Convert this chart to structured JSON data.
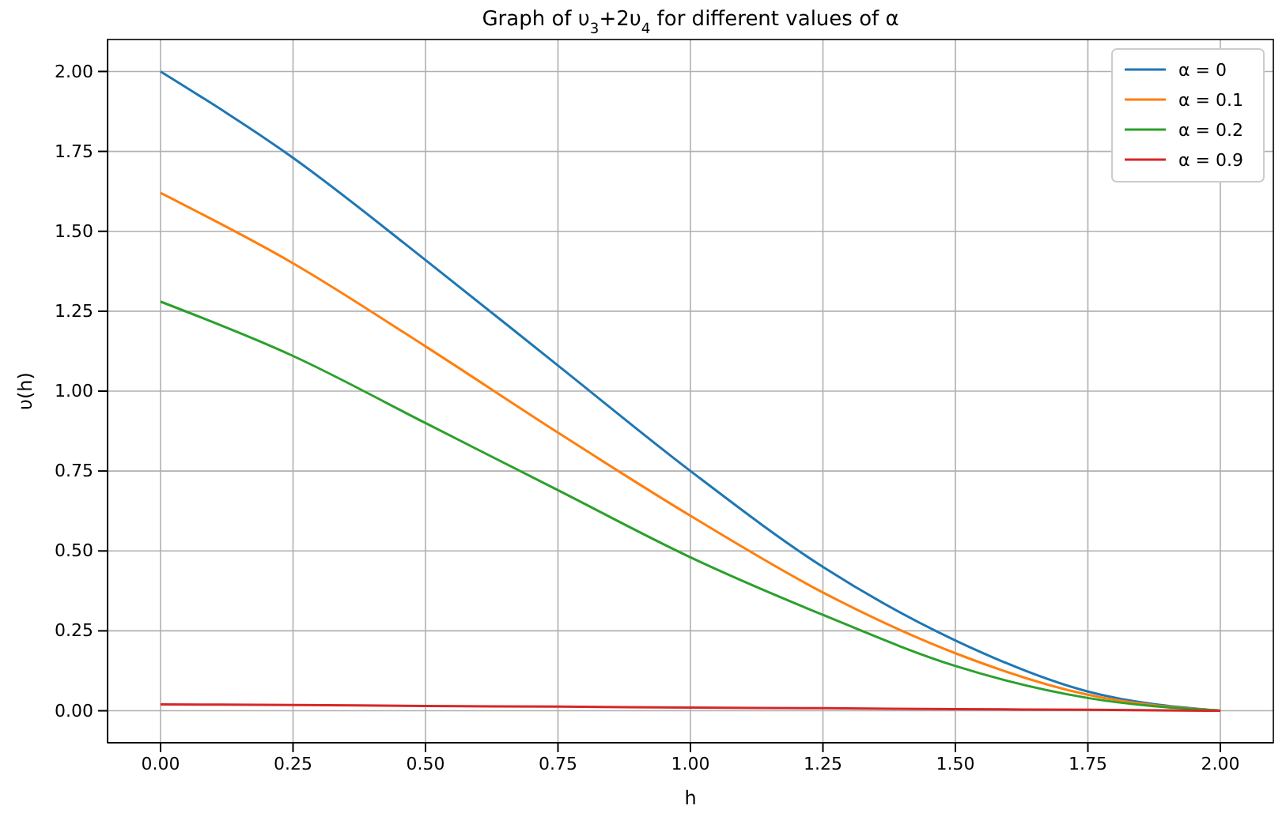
{
  "chart_data": {
    "type": "line",
    "title": "Graph of υ$_{3}$+2υ$_{4}$ for different values of α",
    "xlabel": "h",
    "ylabel": "υ(h)",
    "x": [
      0,
      0.25,
      0.5,
      0.75,
      1.0,
      1.25,
      1.5,
      1.75,
      2.0
    ],
    "series": [
      {
        "name": "α = 0",
        "color": "#1f77b4",
        "values": [
          2.0,
          1.73,
          1.41,
          1.08,
          0.75,
          0.45,
          0.22,
          0.06,
          0
        ]
      },
      {
        "name": "α = 0.1",
        "color": "#ff7f0e",
        "values": [
          1.62,
          1.4,
          1.14,
          0.87,
          0.61,
          0.37,
          0.18,
          0.05,
          0
        ]
      },
      {
        "name": "α = 0.2",
        "color": "#2ca02c",
        "values": [
          1.28,
          1.11,
          0.9,
          0.69,
          0.48,
          0.3,
          0.14,
          0.04,
          0
        ]
      },
      {
        "name": "α = 0.9",
        "color": "#d62728",
        "values": [
          0.02,
          0.018,
          0.015,
          0.013,
          0.01,
          0.008,
          0.005,
          0.003,
          0
        ]
      }
    ],
    "xlim": [
      -0.1,
      2.1
    ],
    "ylim": [
      -0.1,
      2.1
    ],
    "xticks": [
      {
        "value": 0,
        "label": "0.00"
      },
      {
        "value": 0.25,
        "label": "0.25"
      },
      {
        "value": 0.5,
        "label": "0.50"
      },
      {
        "value": 0.75,
        "label": "0.75"
      },
      {
        "value": 1,
        "label": "1.00"
      },
      {
        "value": 1.25,
        "label": "1.25"
      },
      {
        "value": 1.5,
        "label": "1.50"
      },
      {
        "value": 1.75,
        "label": "1.75"
      },
      {
        "value": 2,
        "label": "2.00"
      }
    ],
    "yticks": [
      {
        "value": 0,
        "label": "0.00"
      },
      {
        "value": 0.25,
        "label": "0.25"
      },
      {
        "value": 0.5,
        "label": "0.50"
      },
      {
        "value": 0.75,
        "label": "0.75"
      },
      {
        "value": 1,
        "label": "1.00"
      },
      {
        "value": 1.25,
        "label": "1.25"
      },
      {
        "value": 1.5,
        "label": "1.50"
      },
      {
        "value": 1.75,
        "label": "1.75"
      },
      {
        "value": 2,
        "label": "2.00"
      }
    ],
    "grid": true,
    "legend": "top right",
    "line_style": "solid",
    "marker": "none"
  }
}
